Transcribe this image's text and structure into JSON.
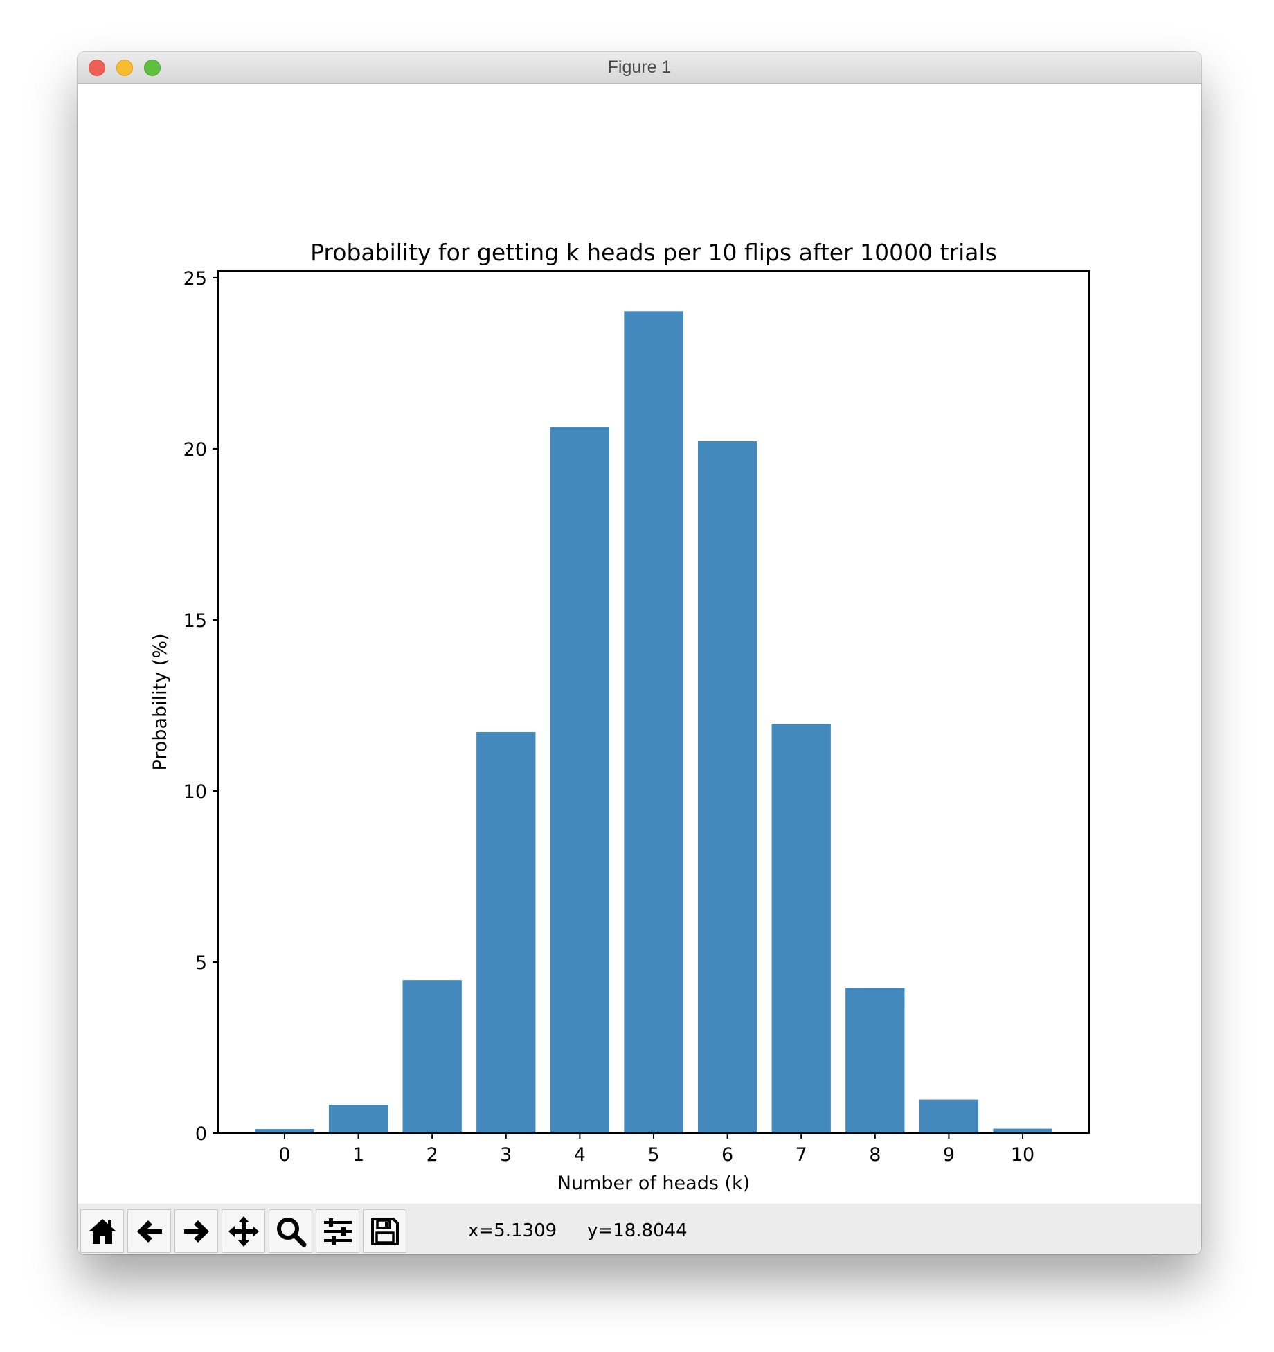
{
  "window": {
    "title": "Figure 1"
  },
  "chart_data": {
    "type": "bar",
    "title": "Probability for getting k heads per 10 flips after 10000 trials",
    "xlabel": "Number of heads (k)",
    "ylabel": "Probability (%)",
    "categories": [
      "0",
      "1",
      "2",
      "3",
      "4",
      "5",
      "6",
      "7",
      "8",
      "9",
      "10"
    ],
    "x": [
      0,
      1,
      2,
      3,
      4,
      5,
      6,
      7,
      8,
      9,
      10
    ],
    "values": [
      0.12,
      0.83,
      4.47,
      11.72,
      20.63,
      24.02,
      20.22,
      11.96,
      4.24,
      0.98,
      0.13
    ],
    "xlim": [
      -0.9,
      10.9
    ],
    "ylim": [
      0,
      25.2
    ],
    "yticks": [
      0,
      5,
      10,
      15,
      20,
      25
    ],
    "xticks": [
      0,
      1,
      2,
      3,
      4,
      5,
      6,
      7,
      8,
      9,
      10
    ],
    "bar_color": "#4389bd",
    "grid": false
  },
  "toolbar": {
    "buttons": [
      {
        "name": "home-button",
        "icon": "home-icon"
      },
      {
        "name": "back-button",
        "icon": "arrow-left-icon"
      },
      {
        "name": "forward-button",
        "icon": "arrow-right-icon"
      },
      {
        "name": "pan-button",
        "icon": "move-icon"
      },
      {
        "name": "zoom-button",
        "icon": "magnifier-icon"
      },
      {
        "name": "subplots-button",
        "icon": "sliders-icon"
      },
      {
        "name": "save-button",
        "icon": "floppy-disk-icon"
      }
    ],
    "x_readout": "x=5.1309",
    "y_readout": "y=18.8044"
  }
}
